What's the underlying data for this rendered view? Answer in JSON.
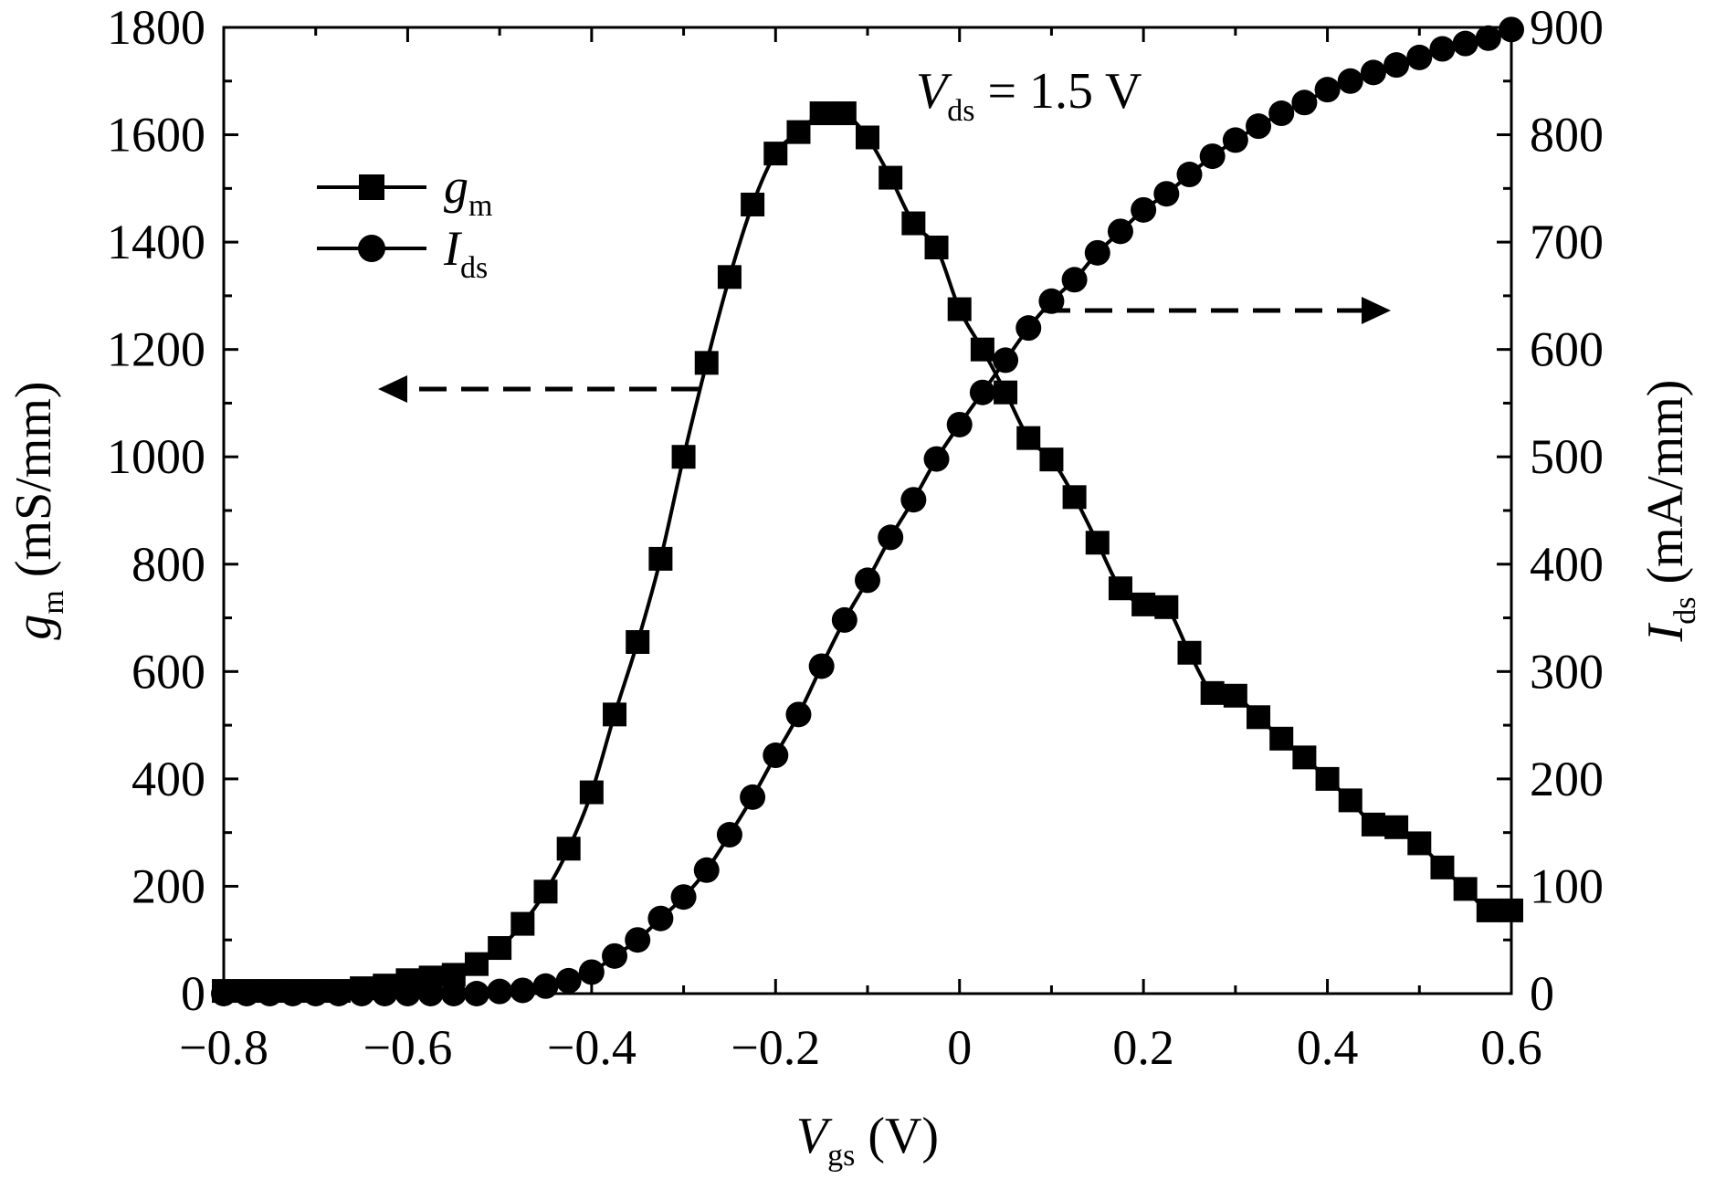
{
  "chart_data": {
    "type": "line",
    "annotation": {
      "var": "V",
      "sub": "ds",
      "rest": " = 1.5 V"
    },
    "xlabel": {
      "var": "V",
      "sub": "gs",
      "unit": " (V)"
    },
    "ylabel_left": {
      "var": "g",
      "sub": "m",
      "unit": " (mS/mm)"
    },
    "ylabel_right": {
      "var": "I",
      "sub": "ds",
      "unit": " (mA/mm)"
    },
    "xlim": [
      -0.8,
      0.6
    ],
    "ylim_left": [
      0,
      1800
    ],
    "ylim_right": [
      0,
      900
    ],
    "x_ticks": [
      "−0.8",
      "−0.6",
      "−0.4",
      "−0.2",
      "0",
      "0.2",
      "0.4",
      "0.6"
    ],
    "y_left_ticks": [
      "0",
      "200",
      "400",
      "600",
      "800",
      "1000",
      "1200",
      "1400",
      "1600",
      "1800"
    ],
    "y_right_ticks": [
      "0",
      "100",
      "200",
      "300",
      "400",
      "500",
      "600",
      "700",
      "800",
      "900"
    ],
    "legend": {
      "position": "top-left"
    },
    "series": [
      {
        "name": {
          "var": "g",
          "sub": "m"
        },
        "axis": "left",
        "marker": "square",
        "x": [
          -0.8,
          -0.775,
          -0.75,
          -0.725,
          -0.7,
          -0.675,
          -0.65,
          -0.625,
          -0.6,
          -0.575,
          -0.55,
          -0.525,
          -0.5,
          -0.475,
          -0.45,
          -0.425,
          -0.4,
          -0.375,
          -0.35,
          -0.325,
          -0.3,
          -0.275,
          -0.25,
          -0.225,
          -0.2,
          -0.175,
          -0.15,
          -0.125,
          -0.1,
          -0.075,
          -0.05,
          -0.025,
          0.0,
          0.025,
          0.05,
          0.075,
          0.1,
          0.125,
          0.15,
          0.175,
          0.2,
          0.225,
          0.25,
          0.275,
          0.3,
          0.325,
          0.35,
          0.375,
          0.4,
          0.425,
          0.45,
          0.475,
          0.5,
          0.525,
          0.55,
          0.575,
          0.6
        ],
        "y": [
          5,
          5,
          5,
          5,
          5,
          5,
          10,
          15,
          25,
          30,
          35,
          55,
          85,
          130,
          190,
          270,
          375,
          520,
          655,
          810,
          1000,
          1175,
          1335,
          1470,
          1565,
          1605,
          1640,
          1640,
          1595,
          1520,
          1435,
          1390,
          1275,
          1200,
          1120,
          1035,
          995,
          925,
          840,
          755,
          725,
          720,
          635,
          560,
          555,
          515,
          475,
          440,
          400,
          360,
          315,
          310,
          280,
          235,
          195,
          155,
          155
        ]
      },
      {
        "name": {
          "var": "I",
          "sub": "ds"
        },
        "axis": "right",
        "marker": "circle",
        "x": [
          -0.8,
          -0.775,
          -0.75,
          -0.725,
          -0.7,
          -0.675,
          -0.65,
          -0.625,
          -0.6,
          -0.575,
          -0.55,
          -0.525,
          -0.5,
          -0.475,
          -0.45,
          -0.425,
          -0.4,
          -0.375,
          -0.35,
          -0.325,
          -0.3,
          -0.275,
          -0.25,
          -0.225,
          -0.2,
          -0.175,
          -0.15,
          -0.125,
          -0.1,
          -0.075,
          -0.05,
          -0.025,
          0.0,
          0.025,
          0.05,
          0.075,
          0.1,
          0.125,
          0.15,
          0.175,
          0.2,
          0.225,
          0.25,
          0.275,
          0.3,
          0.325,
          0.35,
          0.375,
          0.4,
          0.425,
          0.45,
          0.475,
          0.5,
          0.525,
          0.55,
          0.575,
          0.6
        ],
        "y": [
          0,
          0,
          0,
          0,
          0,
          0,
          0,
          0,
          0,
          0,
          0,
          0,
          2,
          3,
          7,
          12,
          20,
          35,
          50,
          70,
          90,
          115,
          148,
          183,
          222,
          260,
          305,
          348,
          385,
          425,
          460,
          498,
          530,
          560,
          590,
          620,
          645,
          665,
          690,
          710,
          730,
          745,
          763,
          780,
          795,
          808,
          820,
          830,
          842,
          850,
          858,
          865,
          872,
          880,
          885,
          890,
          898
        ]
      }
    ]
  }
}
